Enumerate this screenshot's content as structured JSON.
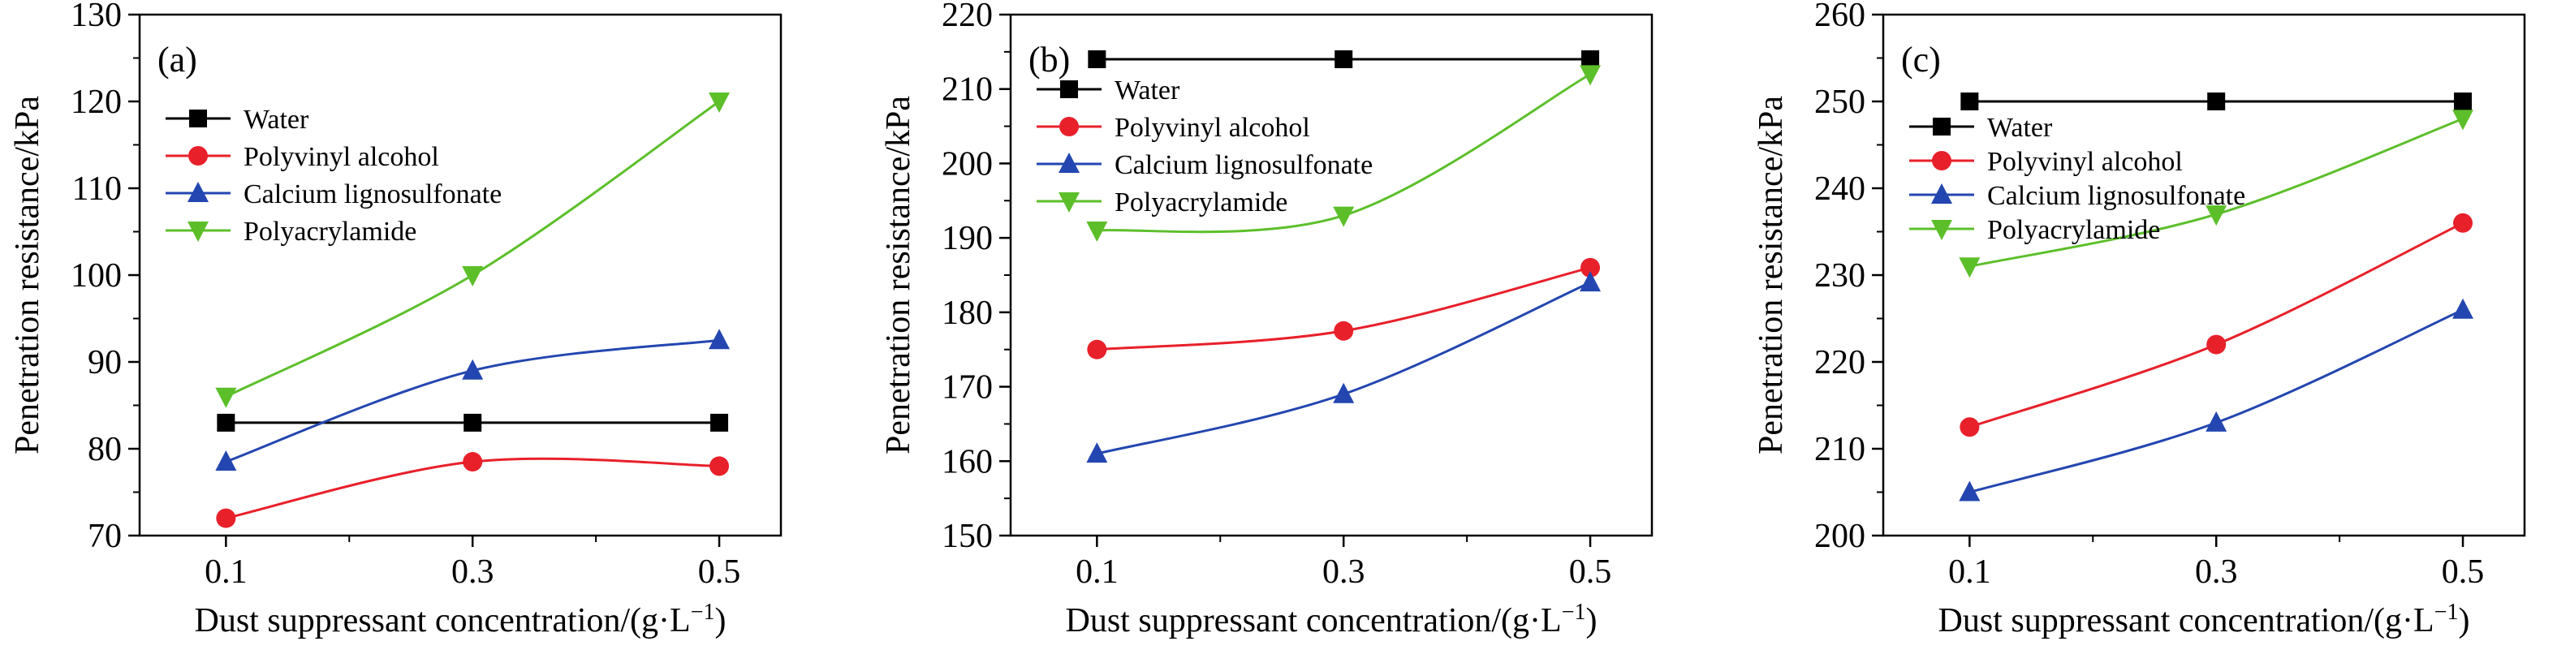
{
  "chart_data": [
    {
      "type": "line",
      "panel_label": "(a)",
      "xlabel_prefix": "Dust suppressant concentration/(g·L",
      "xlabel_exponent": "−1",
      "xlabel_suffix": ")",
      "ylabel": "Penetration resistance/kPa",
      "x": [
        0.1,
        0.3,
        0.5
      ],
      "x_tick_labels": [
        "0.1",
        "0.3",
        "0.5"
      ],
      "xlim": [
        0.03,
        0.55
      ],
      "ylim": [
        70,
        130
      ],
      "y_ticks": [
        70,
        80,
        90,
        100,
        110,
        120,
        130
      ],
      "legend_position": "upper-left",
      "series": [
        {
          "name": "Water",
          "color": "#000000",
          "marker": "square",
          "values": [
            83,
            83,
            83
          ],
          "straight": true
        },
        {
          "name": "Polyvinyl alcohol",
          "color": "#e8202a",
          "marker": "circle",
          "values": [
            72,
            78.5,
            78
          ]
        },
        {
          "name": "Calcium lignosulfonate",
          "color": "#2346b0",
          "marker": "triangle-up",
          "values": [
            78.5,
            89,
            92.5
          ]
        },
        {
          "name": "Polyacrylamide",
          "color": "#5cbf2a",
          "marker": "triangle-down",
          "values": [
            86,
            100,
            120
          ]
        }
      ]
    },
    {
      "type": "line",
      "panel_label": "(b)",
      "xlabel_prefix": "Dust suppressant concentration/(g·L",
      "xlabel_exponent": "−1",
      "xlabel_suffix": ")",
      "ylabel": "Penetration resistance/kPa",
      "x": [
        0.1,
        0.3,
        0.5
      ],
      "x_tick_labels": [
        "0.1",
        "0.3",
        "0.5"
      ],
      "xlim": [
        0.03,
        0.55
      ],
      "ylim": [
        150,
        220
      ],
      "y_ticks": [
        150,
        160,
        170,
        180,
        190,
        200,
        210,
        220
      ],
      "legend_position": "upper-left",
      "series": [
        {
          "name": "Water",
          "color": "#000000",
          "marker": "square",
          "values": [
            214,
            214,
            214
          ],
          "straight": true
        },
        {
          "name": "Polyvinyl alcohol",
          "color": "#e8202a",
          "marker": "circle",
          "values": [
            175,
            177.5,
            186
          ]
        },
        {
          "name": "Calcium lignosulfonate",
          "color": "#2346b0",
          "marker": "triangle-up",
          "values": [
            161,
            169,
            184
          ]
        },
        {
          "name": "Polyacrylamide",
          "color": "#5cbf2a",
          "marker": "triangle-down",
          "values": [
            191,
            193,
            212
          ]
        }
      ]
    },
    {
      "type": "line",
      "panel_label": "(c)",
      "xlabel_prefix": "Dust suppressant concentration/(g·L",
      "xlabel_exponent": "−1",
      "xlabel_suffix": ")",
      "ylabel": "Penetration resistance/kPa",
      "x": [
        0.1,
        0.3,
        0.5
      ],
      "x_tick_labels": [
        "0.1",
        "0.3",
        "0.5"
      ],
      "xlim": [
        0.03,
        0.55
      ],
      "ylim": [
        200,
        260
      ],
      "y_ticks": [
        200,
        210,
        220,
        230,
        240,
        250,
        260
      ],
      "legend_position": "upper-left",
      "series": [
        {
          "name": "Water",
          "color": "#000000",
          "marker": "square",
          "values": [
            250,
            250,
            250
          ],
          "straight": true
        },
        {
          "name": "Polyvinyl alcohol",
          "color": "#e8202a",
          "marker": "circle",
          "values": [
            212.5,
            222,
            236
          ]
        },
        {
          "name": "Calcium lignosulfonate",
          "color": "#2346b0",
          "marker": "triangle-up",
          "values": [
            205,
            213,
            226
          ]
        },
        {
          "name": "Polyacrylamide",
          "color": "#5cbf2a",
          "marker": "triangle-down",
          "values": [
            231,
            237,
            248
          ]
        }
      ]
    }
  ]
}
